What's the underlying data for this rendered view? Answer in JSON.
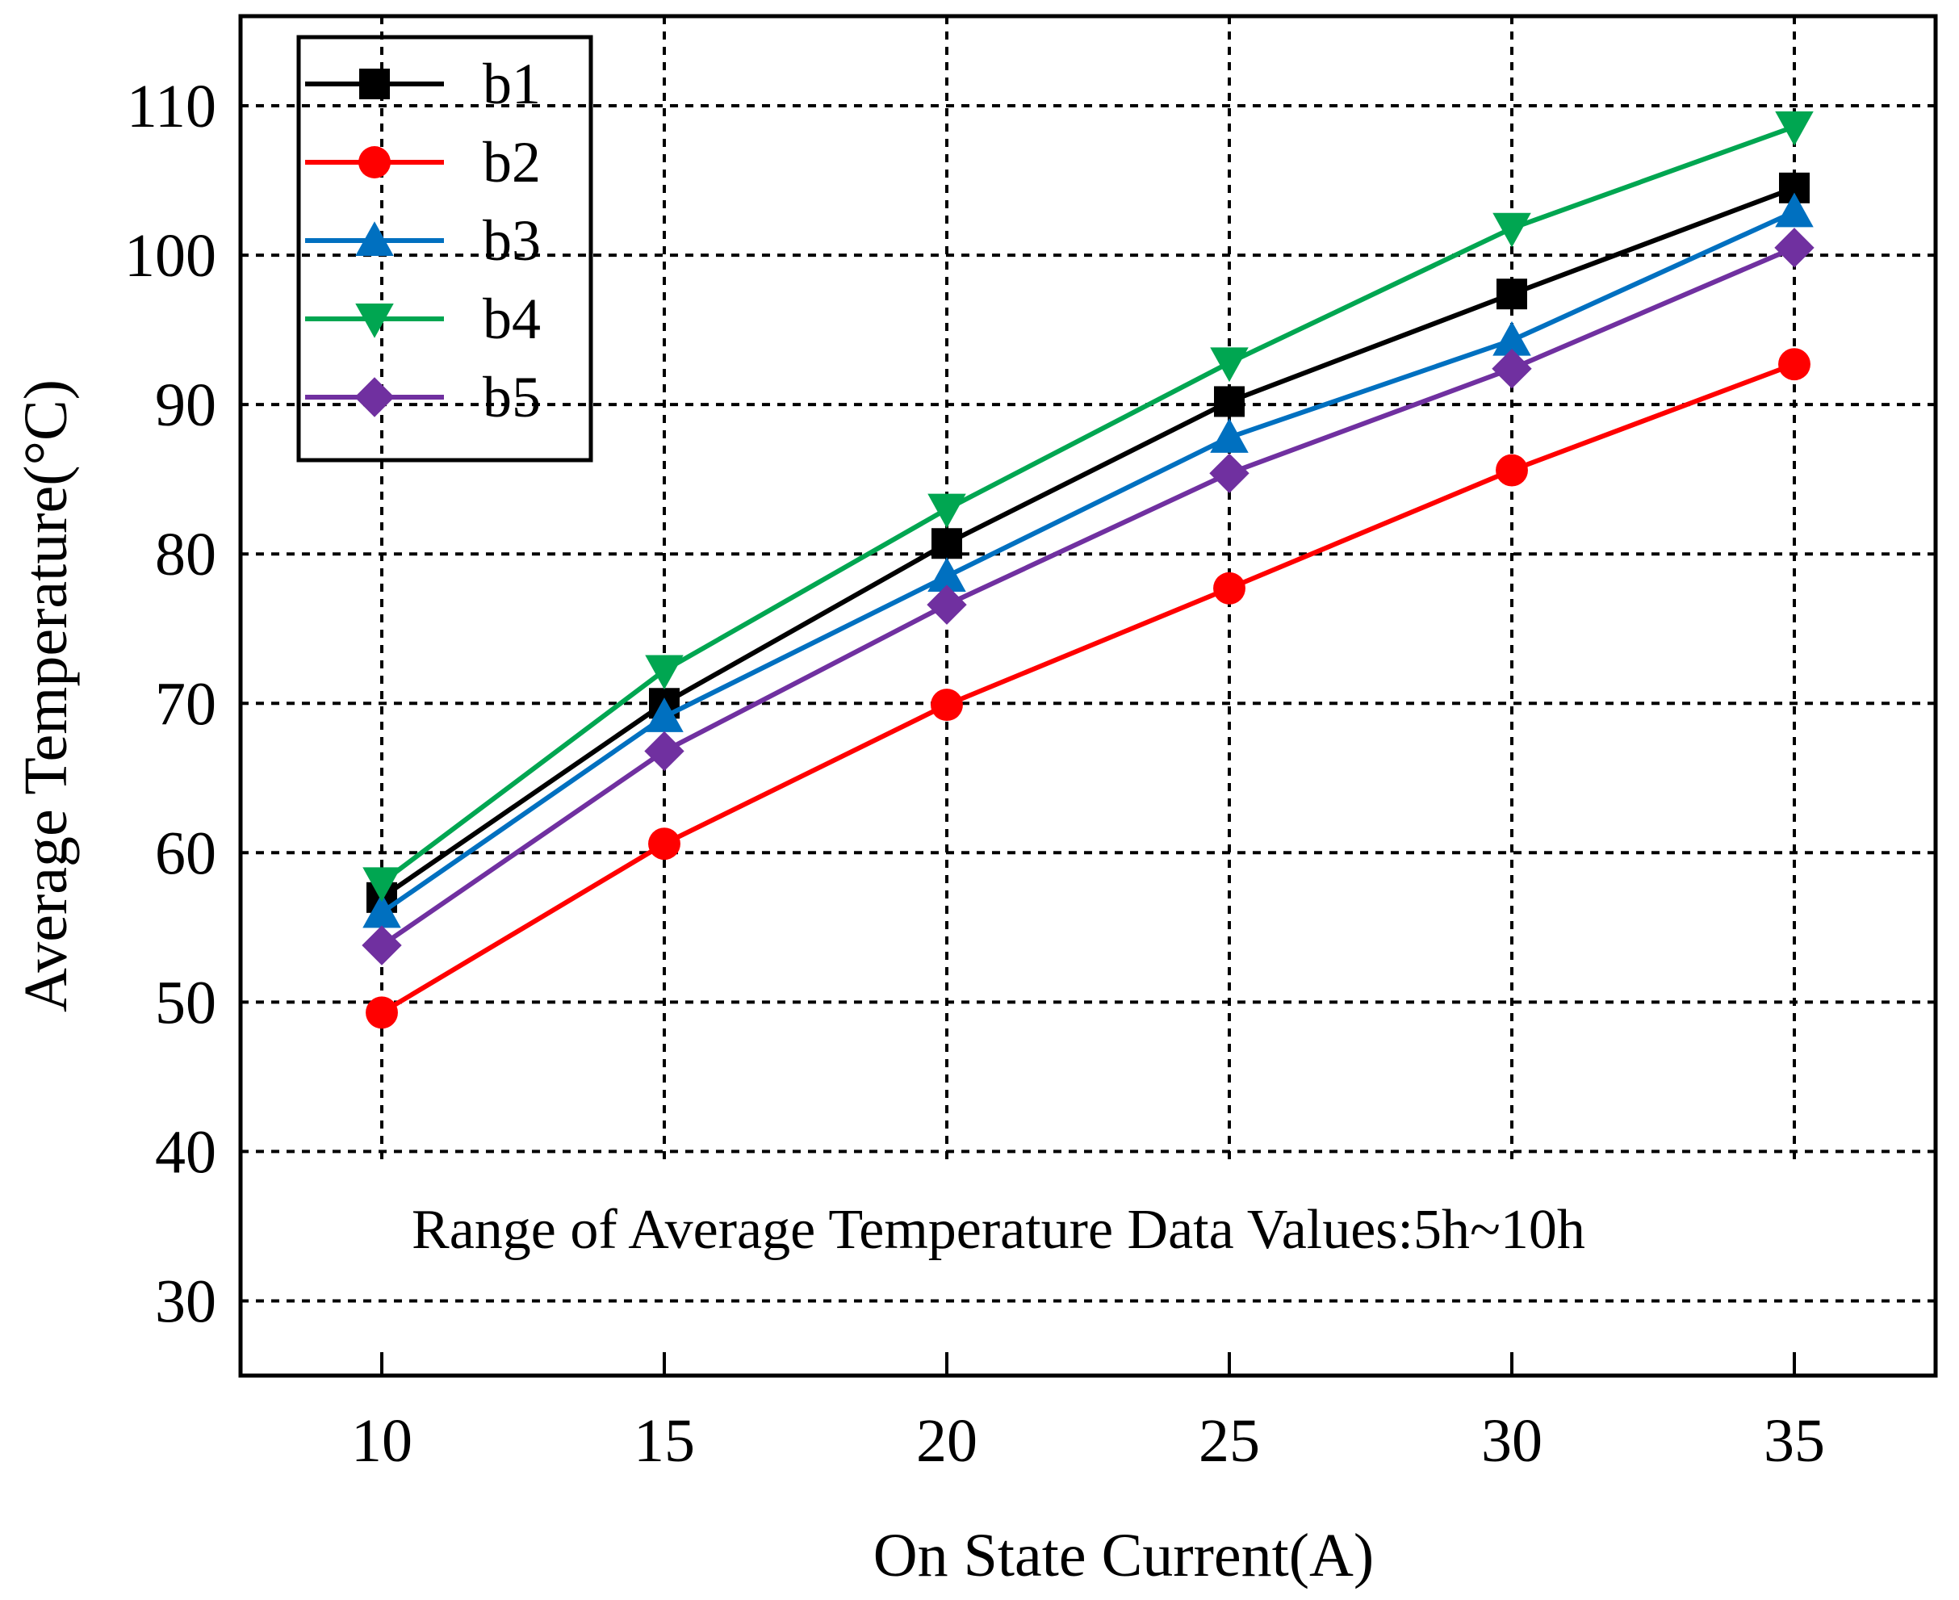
{
  "chart_data": {
    "type": "line",
    "title": "",
    "xlabel": "On State Current(A)",
    "ylabel": "Average Temperature(°C)",
    "x": [
      10,
      15,
      20,
      25,
      30,
      35
    ],
    "x_ticks": [
      "10",
      "15",
      "20",
      "25",
      "30",
      "35"
    ],
    "y_ticks": [
      "30",
      "40",
      "50",
      "60",
      "70",
      "80",
      "90",
      "100",
      "110"
    ],
    "xlim": [
      7.5,
      37.5
    ],
    "ylim": [
      25,
      116
    ],
    "grid": true,
    "legend_position": "top-left",
    "annotation": "Range of Average Temperature Data Values:5h~10h",
    "series": [
      {
        "name": "b1",
        "color": "#000000",
        "marker": "square",
        "values": [
          57.0,
          70.0,
          80.7,
          90.2,
          97.4,
          104.5
        ]
      },
      {
        "name": "b2",
        "color": "#ff0000",
        "marker": "circle",
        "values": [
          49.3,
          60.6,
          69.9,
          77.7,
          85.6,
          92.7
        ]
      },
      {
        "name": "b3",
        "color": "#0070c0",
        "marker": "triangle-up",
        "values": [
          56.0,
          69.1,
          78.5,
          87.8,
          94.3,
          102.9
        ]
      },
      {
        "name": "b4",
        "color": "#00a651",
        "marker": "triangle-down",
        "values": [
          58.0,
          72.2,
          83.0,
          92.8,
          101.8,
          108.6
        ]
      },
      {
        "name": "b5",
        "color": "#7030a0",
        "marker": "diamond",
        "values": [
          53.8,
          66.8,
          76.6,
          85.4,
          92.4,
          100.5
        ]
      }
    ]
  }
}
